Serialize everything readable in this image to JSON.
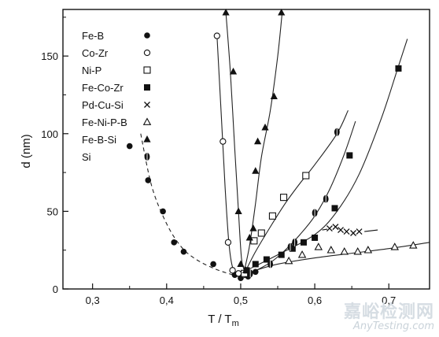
{
  "chart_data": {
    "type": "scatter",
    "title": "",
    "xlabel": "T / T",
    "xlabel_sub": "m",
    "ylabel": "d (nm)",
    "xlim": [
      0.26,
      0.755
    ],
    "ylim": [
      0,
      180
    ],
    "xticks": [
      0.3,
      0.4,
      0.5,
      0.6,
      0.7
    ],
    "xtick_labels": [
      "0,3",
      "0,4",
      "0,5",
      "0,6",
      "0,7"
    ],
    "yticks": [
      0,
      50,
      100,
      150
    ],
    "ytick_labels": [
      "0",
      "50",
      "100",
      "150"
    ],
    "grid": false,
    "legend_position": "top-left",
    "series": [
      {
        "name": "Fe-B",
        "marker": "filled-circle",
        "points": [
          [
            0.35,
            92
          ],
          [
            0.375,
            70
          ],
          [
            0.395,
            50
          ],
          [
            0.41,
            30
          ],
          [
            0.423,
            24
          ],
          [
            0.463,
            16
          ],
          [
            0.492,
            9
          ],
          [
            0.5,
            7
          ],
          [
            0.51,
            8
          ],
          [
            0.52,
            11
          ]
        ]
      },
      {
        "name": "Co-Zr",
        "marker": "open-circle",
        "points": [
          [
            0.468,
            163
          ],
          [
            0.476,
            95
          ],
          [
            0.483,
            30
          ],
          [
            0.489,
            12
          ],
          [
            0.497,
            10
          ],
          [
            0.504,
            9
          ]
        ]
      },
      {
        "name": "Ni-P",
        "marker": "open-square",
        "points": [
          [
            0.505,
            10
          ],
          [
            0.518,
            31
          ],
          [
            0.528,
            36
          ],
          [
            0.543,
            47
          ],
          [
            0.558,
            59
          ],
          [
            0.588,
            73
          ]
        ]
      },
      {
        "name": "Fe-Co-Zr",
        "marker": "filled-square",
        "points": [
          [
            0.508,
            12
          ],
          [
            0.52,
            16
          ],
          [
            0.535,
            19
          ],
          [
            0.555,
            22
          ],
          [
            0.57,
            26
          ],
          [
            0.585,
            30
          ],
          [
            0.6,
            33
          ],
          [
            0.627,
            52
          ],
          [
            0.647,
            86
          ],
          [
            0.713,
            142
          ]
        ]
      },
      {
        "name": "Pd-Cu-Si",
        "marker": "cross",
        "points": [
          [
            0.62,
            39
          ],
          [
            0.628,
            40
          ],
          [
            0.635,
            38
          ],
          [
            0.643,
            37
          ],
          [
            0.652,
            36
          ],
          [
            0.66,
            37
          ]
        ],
        "tail": [
          [
            0.667,
            37
          ],
          [
            0.685,
            38
          ]
        ]
      },
      {
        "name": "Fe-Ni-P-B",
        "marker": "open-triangle",
        "points": [
          [
            0.565,
            18
          ],
          [
            0.583,
            22
          ],
          [
            0.605,
            27
          ],
          [
            0.622,
            25
          ],
          [
            0.64,
            24
          ],
          [
            0.658,
            24
          ],
          [
            0.672,
            25
          ],
          [
            0.708,
            27
          ],
          [
            0.733,
            28
          ]
        ]
      },
      {
        "name": "Fe-B-Si",
        "marker": "filled-triangle",
        "points": [
          [
            0.48,
            178
          ],
          [
            0.49,
            140
          ],
          [
            0.497,
            50
          ],
          [
            0.5,
            16
          ],
          [
            0.507,
            12
          ],
          [
            0.512,
            33
          ],
          [
            0.517,
            39
          ],
          [
            0.52,
            76
          ],
          [
            0.523,
            95
          ],
          [
            0.533,
            104
          ],
          [
            0.545,
            124
          ],
          [
            0.555,
            178
          ]
        ]
      },
      {
        "name": "Si",
        "marker": "half-circle",
        "points": [
          [
            0.513,
            10
          ],
          [
            0.54,
            16
          ],
          [
            0.567,
            27
          ],
          [
            0.573,
            30
          ],
          [
            0.6,
            49
          ],
          [
            0.615,
            58
          ],
          [
            0.63,
            101
          ]
        ]
      }
    ],
    "curves": [
      {
        "name": "Fe-B",
        "style": "dashed",
        "points": [
          [
            0.365,
            100
          ],
          [
            0.38,
            66
          ],
          [
            0.4,
            42
          ],
          [
            0.42,
            27
          ],
          [
            0.44,
            19
          ],
          [
            0.465,
            13
          ],
          [
            0.49,
            9
          ],
          [
            0.5,
            8
          ],
          [
            0.51,
            9
          ],
          [
            0.52,
            12
          ]
        ]
      },
      {
        "name": "Co-Zr",
        "style": "solid",
        "points": [
          [
            0.468,
            163
          ],
          [
            0.474,
            110
          ],
          [
            0.479,
            65
          ],
          [
            0.484,
            30
          ],
          [
            0.489,
            14
          ],
          [
            0.496,
            10
          ],
          [
            0.504,
            9
          ]
        ]
      },
      {
        "name": "Fe-B-Si-left",
        "style": "solid",
        "points": [
          [
            0.48,
            178
          ],
          [
            0.486,
            140
          ],
          [
            0.492,
            90
          ],
          [
            0.497,
            50
          ],
          [
            0.501,
            20
          ],
          [
            0.505,
            12
          ]
        ]
      },
      {
        "name": "Fe-B-Si-right",
        "style": "solid",
        "points": [
          [
            0.505,
            12
          ],
          [
            0.512,
            28
          ],
          [
            0.52,
            55
          ],
          [
            0.528,
            85
          ],
          [
            0.54,
            115
          ],
          [
            0.55,
            150
          ],
          [
            0.556,
            178
          ]
        ]
      },
      {
        "name": "Ni-P",
        "style": "solid",
        "points": [
          [
            0.505,
            10
          ],
          [
            0.52,
            24
          ],
          [
            0.54,
            40
          ],
          [
            0.56,
            55
          ],
          [
            0.58,
            68
          ],
          [
            0.6,
            80
          ],
          [
            0.63,
            100
          ],
          [
            0.645,
            115
          ]
        ]
      },
      {
        "name": "Si",
        "style": "solid",
        "points": [
          [
            0.513,
            10
          ],
          [
            0.54,
            17
          ],
          [
            0.56,
            25
          ],
          [
            0.58,
            35
          ],
          [
            0.6,
            47
          ],
          [
            0.62,
            64
          ],
          [
            0.64,
            87
          ],
          [
            0.655,
            108
          ]
        ]
      },
      {
        "name": "Fe-Co-Zr",
        "style": "solid",
        "points": [
          [
            0.508,
            12
          ],
          [
            0.55,
            22
          ],
          [
            0.6,
            35
          ],
          [
            0.63,
            50
          ],
          [
            0.66,
            74
          ],
          [
            0.69,
            110
          ],
          [
            0.712,
            142
          ],
          [
            0.725,
            161
          ]
        ]
      },
      {
        "name": "Fe-Ni-P-B",
        "style": "solid",
        "points": [
          [
            0.52,
            12
          ],
          [
            0.55,
            16
          ],
          [
            0.6,
            20
          ],
          [
            0.65,
            23
          ],
          [
            0.7,
            26
          ],
          [
            0.755,
            30
          ]
        ]
      }
    ]
  },
  "watermark": {
    "cn": "嘉峪检测网",
    "en": "AnyTesting.com"
  }
}
